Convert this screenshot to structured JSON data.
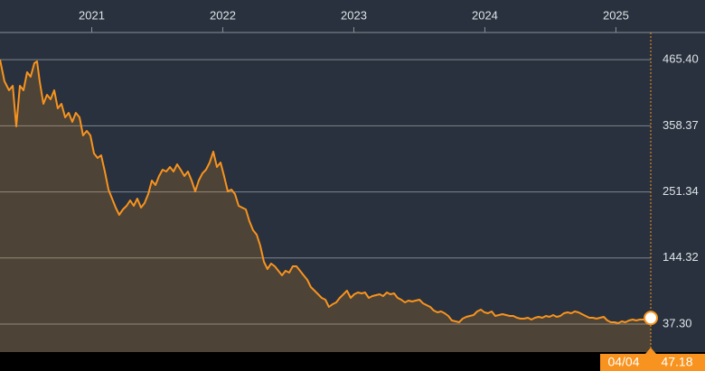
{
  "chart_data": {
    "type": "line",
    "color": "#f7931e",
    "grid": true,
    "xlim": [
      2020.3,
      2025.266
    ],
    "xticks": [
      2021,
      2022,
      2023,
      2024,
      2025
    ],
    "ylim": [
      -8,
      509.5
    ],
    "yticks": [
      {
        "value": 37.3,
        "label": "37.30"
      },
      {
        "value": 144.32,
        "label": "144.32"
      },
      {
        "value": 251.34,
        "label": "251.34"
      },
      {
        "value": 358.37,
        "label": "358.37"
      },
      {
        "value": 465.4,
        "label": "465.40"
      }
    ],
    "last_date_label": "04/04",
    "x": [
      2020.3,
      2020.334,
      2020.369,
      2020.397,
      2020.424,
      2020.452,
      2020.479,
      2020.507,
      2020.534,
      2020.562,
      2020.583,
      2020.603,
      2020.631,
      2020.659,
      2020.686,
      2020.714,
      2020.741,
      2020.769,
      2020.797,
      2020.824,
      2020.852,
      2020.879,
      2020.907,
      2020.934,
      2020.962,
      2020.99,
      2021.017,
      2021.045,
      2021.072,
      2021.1,
      2021.128,
      2021.155,
      2021.183,
      2021.21,
      2021.238,
      2021.266,
      2021.293,
      2021.321,
      2021.348,
      2021.376,
      2021.403,
      2021.431,
      2021.459,
      2021.486,
      2021.514,
      2021.541,
      2021.569,
      2021.597,
      2021.624,
      2021.652,
      2021.679,
      2021.707,
      2021.734,
      2021.762,
      2021.79,
      2021.817,
      2021.845,
      2021.872,
      2021.9,
      2021.928,
      2021.955,
      2021.983,
      2022.01,
      2022.038,
      2022.066,
      2022.093,
      2022.121,
      2022.148,
      2022.176,
      2022.203,
      2022.231,
      2022.259,
      2022.286,
      2022.314,
      2022.341,
      2022.369,
      2022.397,
      2022.424,
      2022.452,
      2022.479,
      2022.507,
      2022.534,
      2022.562,
      2022.59,
      2022.617,
      2022.645,
      2022.672,
      2022.7,
      2022.728,
      2022.755,
      2022.783,
      2022.81,
      2022.838,
      2022.866,
      2022.893,
      2022.921,
      2022.948,
      2022.976,
      2023.003,
      2023.031,
      2023.059,
      2023.086,
      2023.114,
      2023.141,
      2023.169,
      2023.197,
      2023.224,
      2023.252,
      2023.279,
      2023.307,
      2023.334,
      2023.362,
      2023.39,
      2023.417,
      2023.445,
      2023.472,
      2023.5,
      2023.528,
      2023.555,
      2023.583,
      2023.61,
      2023.638,
      2023.666,
      2023.693,
      2023.721,
      2023.748,
      2023.776,
      2023.803,
      2023.831,
      2023.859,
      2023.886,
      2023.914,
      2023.941,
      2023.969,
      2023.997,
      2024.024,
      2024.052,
      2024.079,
      2024.107,
      2024.134,
      2024.162,
      2024.19,
      2024.217,
      2024.245,
      2024.272,
      2024.3,
      2024.328,
      2024.355,
      2024.383,
      2024.41,
      2024.438,
      2024.466,
      2024.493,
      2024.521,
      2024.548,
      2024.576,
      2024.603,
      2024.631,
      2024.659,
      2024.686,
      2024.714,
      2024.741,
      2024.769,
      2024.797,
      2024.824,
      2024.852,
      2024.879,
      2024.907,
      2024.934,
      2024.962,
      2024.99,
      2025.017,
      2025.045,
      2025.072,
      2025.1,
      2025.128,
      2025.155,
      2025.183,
      2025.21,
      2025.238,
      2025.266
    ],
    "values": [
      465.7,
      430.6,
      416.0,
      423.3,
      357.5,
      423.3,
      416.0,
      445.2,
      437.9,
      459.8,
      462.7,
      430.6,
      394.0,
      408.6,
      401.3,
      416.0,
      386.7,
      394.0,
      372.1,
      379.4,
      364.8,
      379.4,
      372.1,
      342.9,
      350.2,
      342.9,
      313.6,
      306.3,
      310.7,
      284.4,
      255.1,
      240.5,
      225.9,
      214.2,
      223.0,
      228.8,
      237.6,
      228.8,
      240.5,
      225.9,
      233.2,
      247.8,
      269.8,
      262.4,
      277.1,
      287.3,
      284.4,
      291.7,
      284.4,
      296.1,
      287.3,
      277.1,
      284.4,
      269.8,
      252.2,
      269.8,
      281.5,
      287.3,
      299.0,
      316.5,
      291.7,
      299.0,
      277.1,
      252.2,
      255.1,
      247.8,
      228.8,
      225.9,
      223.0,
      204.0,
      189.3,
      182.0,
      164.5,
      138.2,
      126.5,
      135.3,
      130.9,
      123.6,
      116.2,
      123.6,
      120.6,
      130.9,
      130.9,
      123.6,
      116.2,
      108.9,
      97.2,
      91.4,
      85.5,
      79.7,
      76.8,
      65.1,
      69.5,
      72.4,
      79.7,
      85.5,
      91.4,
      79.7,
      85.5,
      88.5,
      87.0,
      88.5,
      79.7,
      82.6,
      84.1,
      85.5,
      82.6,
      88.5,
      85.5,
      87.0,
      79.7,
      76.8,
      72.4,
      75.3,
      73.9,
      75.3,
      76.8,
      70.9,
      68.0,
      65.1,
      59.2,
      56.3,
      57.8,
      54.8,
      50.5,
      43.1,
      41.7,
      40.2,
      46.1,
      49.0,
      50.5,
      51.9,
      57.8,
      60.7,
      56.3,
      54.8,
      57.8,
      50.5,
      51.9,
      53.4,
      51.9,
      50.5,
      50.5,
      47.5,
      46.1,
      46.1,
      47.5,
      44.6,
      47.5,
      49.0,
      47.5,
      50.5,
      49.0,
      51.9,
      49.0,
      50.5,
      54.8,
      56.3,
      54.8,
      57.8,
      56.3,
      53.4,
      50.5,
      47.5,
      47.5,
      46.1,
      47.5,
      49.0,
      43.1,
      40.2,
      40.2,
      38.8,
      41.7,
      40.2,
      43.1,
      44.6,
      43.1,
      44.6,
      44.6,
      46.1,
      47.18
    ]
  }
}
